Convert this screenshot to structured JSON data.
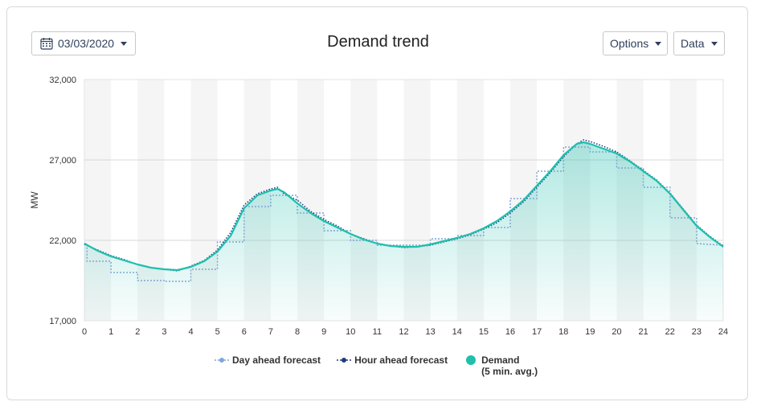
{
  "header": {
    "date_label": "03/03/2020",
    "title": "Demand trend",
    "options_label": "Options",
    "data_label": "Data"
  },
  "colors": {
    "demand": "#1fbfad",
    "hour_ahead": "#1f3a7a",
    "day_ahead": "#7fa6d6",
    "band": "#f5f5f5",
    "grid": "#d8d8d8"
  },
  "legend": {
    "day_ahead": "Day ahead forecast",
    "hour_ahead": "Hour ahead forecast",
    "demand_line1": "Demand",
    "demand_line2": "(5 min. avg.)"
  },
  "chart_data": {
    "type": "line",
    "title": "Demand trend",
    "xlabel": "",
    "ylabel": "MW",
    "xlim": [
      0,
      24
    ],
    "ylim": [
      17000,
      32000
    ],
    "x_ticks": [
      "0",
      "1",
      "2",
      "3",
      "4",
      "5",
      "6",
      "7",
      "8",
      "9",
      "10",
      "11",
      "12",
      "13",
      "14",
      "15",
      "16",
      "17",
      "18",
      "19",
      "20",
      "21",
      "22",
      "23",
      "24"
    ],
    "y_ticks": [
      "17,000",
      "22,000",
      "27,000",
      "32,000"
    ],
    "grid": true,
    "legend_position": "bottom",
    "series": [
      {
        "name": "Demand",
        "x": [
          0,
          0.5,
          1,
          1.5,
          2,
          2.5,
          3,
          3.5,
          4,
          4.5,
          5,
          5.5,
          6,
          6.5,
          7,
          7.25,
          7.5,
          8,
          8.5,
          9,
          9.5,
          10,
          10.5,
          11,
          11.5,
          12,
          12.5,
          13,
          13.5,
          14,
          14.5,
          15,
          15.5,
          16,
          16.5,
          17,
          17.5,
          18,
          18.5,
          18.75,
          19,
          19.5,
          20,
          20.5,
          21,
          21.5,
          22,
          22.5,
          23,
          23.5,
          24
        ],
        "y": [
          21800,
          21350,
          21000,
          20750,
          20500,
          20300,
          20200,
          20150,
          20350,
          20700,
          21300,
          22300,
          24000,
          24800,
          25100,
          25200,
          25000,
          24300,
          23700,
          23200,
          22800,
          22400,
          22050,
          21800,
          21650,
          21600,
          21600,
          21750,
          21950,
          22150,
          22400,
          22750,
          23200,
          23800,
          24500,
          25400,
          26300,
          27300,
          28000,
          28100,
          28000,
          27700,
          27400,
          26900,
          26300,
          25700,
          24900,
          23900,
          22900,
          22200,
          21600
        ]
      },
      {
        "name": "Hour ahead forecast",
        "x": [
          0,
          0.5,
          1,
          1.5,
          2,
          2.5,
          3,
          3.5,
          4,
          4.5,
          5,
          5.5,
          6,
          6.5,
          7,
          7.25,
          7.5,
          8,
          8.5,
          9,
          9.5,
          10,
          10.5,
          11,
          11.5,
          12,
          12.5,
          13,
          13.5,
          14,
          14.5,
          15,
          15.5,
          16,
          16.5,
          17,
          17.5,
          18,
          18.5,
          18.75,
          19,
          19.5,
          20,
          20.5,
          21,
          21.5,
          22,
          22.5,
          23,
          23.5,
          24
        ],
        "y": [
          21750,
          21400,
          21050,
          20800,
          20500,
          20300,
          20200,
          20100,
          20400,
          20750,
          21400,
          22500,
          24200,
          24900,
          25200,
          25300,
          24900,
          24500,
          23800,
          23300,
          22900,
          22400,
          22100,
          21800,
          21650,
          21550,
          21600,
          21700,
          21900,
          22100,
          22350,
          22700,
          23100,
          23700,
          24400,
          25300,
          26200,
          27200,
          28000,
          28250,
          28150,
          27850,
          27500,
          26950,
          26350,
          25750,
          24950,
          23950,
          22950,
          22250,
          21650
        ]
      },
      {
        "name": "Day ahead forecast",
        "x": [
          0,
          0.1,
          0.1,
          1,
          1,
          2,
          2,
          3,
          3,
          4,
          4,
          5,
          5,
          6,
          6,
          7,
          7,
          8,
          8,
          9,
          9,
          10,
          10,
          11,
          11,
          12,
          12,
          13,
          13,
          14,
          14,
          15,
          15,
          16,
          16,
          17,
          17,
          18,
          18,
          19,
          19,
          20,
          20,
          21,
          21,
          22,
          22,
          23,
          23,
          24
        ],
        "y": [
          21800,
          21800,
          20700,
          20700,
          20000,
          20000,
          19500,
          19500,
          19450,
          19450,
          20200,
          20200,
          21900,
          21900,
          24100,
          24100,
          24800,
          24800,
          23700,
          23700,
          22600,
          22600,
          22000,
          22000,
          21700,
          21700,
          21700,
          21700,
          22100,
          22100,
          22300,
          22300,
          22800,
          22800,
          24600,
          24600,
          26300,
          26300,
          27800,
          27800,
          27500,
          27500,
          26500,
          26500,
          25300,
          25300,
          23400,
          23400,
          21800,
          21700
        ]
      }
    ]
  }
}
